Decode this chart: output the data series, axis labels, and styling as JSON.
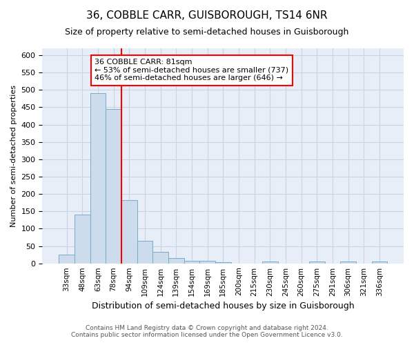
{
  "title": "36, COBBLE CARR, GUISBOROUGH, TS14 6NR",
  "subtitle": "Size of property relative to semi-detached houses in Guisborough",
  "xlabel": "Distribution of semi-detached houses by size in Guisborough",
  "ylabel": "Number of semi-detached properties",
  "categories": [
    "33sqm",
    "48sqm",
    "63sqm",
    "78sqm",
    "94sqm",
    "109sqm",
    "124sqm",
    "139sqm",
    "154sqm",
    "169sqm",
    "185sqm",
    "200sqm",
    "215sqm",
    "230sqm",
    "245sqm",
    "260sqm",
    "275sqm",
    "291sqm",
    "306sqm",
    "321sqm",
    "336sqm"
  ],
  "values": [
    25,
    140,
    490,
    445,
    183,
    65,
    33,
    15,
    8,
    8,
    3,
    0,
    0,
    5,
    0,
    0,
    5,
    0,
    5,
    0,
    5
  ],
  "bar_color": "#ccdcec",
  "bar_edge_color": "#7aaac8",
  "grid_color": "#c8d4e4",
  "red_line_x": 3,
  "smaller_pct": 53,
  "smaller_count": 737,
  "larger_pct": 46,
  "larger_count": 646,
  "property_label": "36 COBBLE CARR: 81sqm",
  "ylim": [
    0,
    620
  ],
  "yticks": [
    0,
    50,
    100,
    150,
    200,
    250,
    300,
    350,
    400,
    450,
    500,
    550,
    600
  ],
  "footer1": "Contains HM Land Registry data © Crown copyright and database right 2024.",
  "footer2": "Contains public sector information licensed under the Open Government Licence v3.0.",
  "bg_color": "#e8eef8",
  "title_fontsize": 11,
  "subtitle_fontsize": 9
}
